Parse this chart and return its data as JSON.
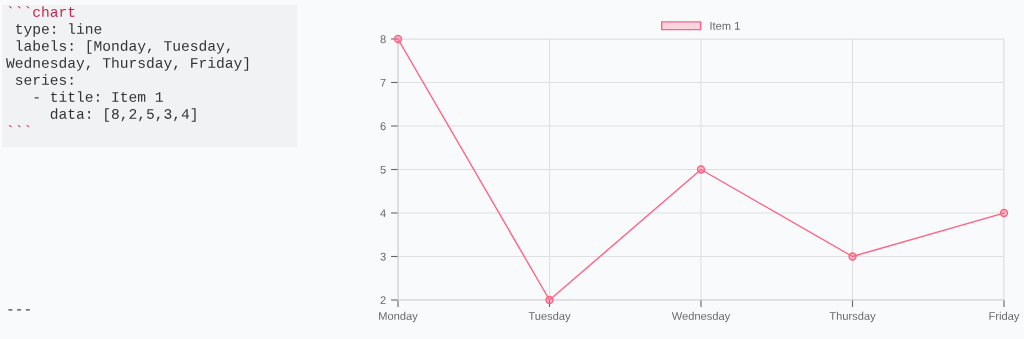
{
  "chart_data": [
    {
      "type": "other",
      "annotations": [
        "```chart",
        " type: line",
        " labels: [Monday, Tuesday,",
        "Wednesday, Thursday, Friday]",
        " series:",
        "   - title: Item 1",
        "     data: [8,2,5,3,4]",
        "```",
        "---"
      ],
      "colors": [
        "#c7254e",
        "#333333",
        "#333333",
        "#333333",
        "#333333",
        "#333333",
        "#333333",
        "#c7254e",
        "#333333"
      ]
    },
    {
      "type": "line",
      "categories": [
        "Monday",
        "Tuesday",
        "Wednesday",
        "Thursday",
        "Friday"
      ],
      "series": [
        {
          "name": "Item 1",
          "color": "#ff6384",
          "values": [
            8,
            2,
            5,
            3,
            4
          ]
        }
      ],
      "ylim": [
        2,
        8
      ],
      "yticks": [
        2,
        3,
        4,
        5,
        6,
        7,
        8
      ],
      "grid": true,
      "legend": "top",
      "marker": "circle",
      "line_style": "solid"
    }
  ]
}
